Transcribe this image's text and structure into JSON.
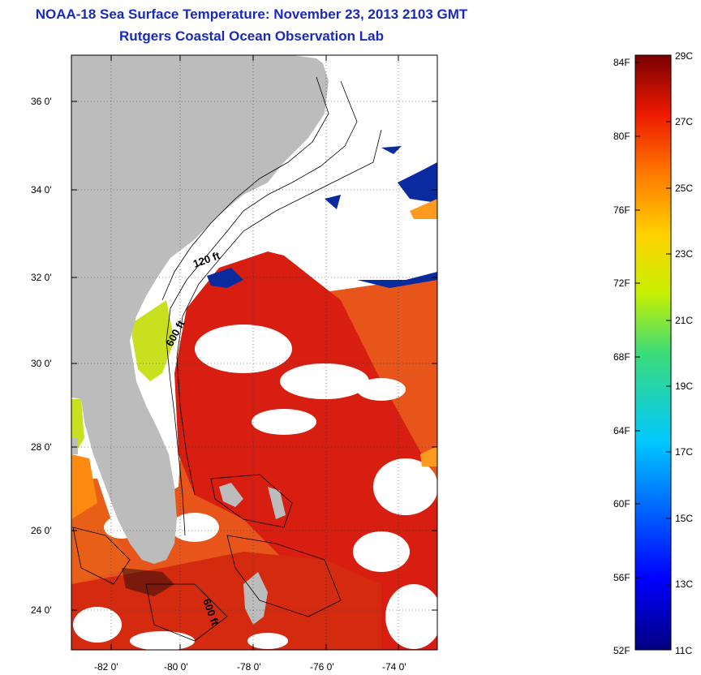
{
  "title": {
    "line1": "NOAA-18 Sea Surface Temperature:  November 23, 2013 2103 GMT",
    "line2": "Rutgers Coastal Ocean Observation Lab"
  },
  "map": {
    "lat_labels": [
      "36 0'",
      "34 0'",
      "32 0'",
      "30 0'",
      "28 0'",
      "26 0'",
      "24 0'"
    ],
    "lon_labels": [
      "-82 0'",
      "-80 0'",
      "-78 0'",
      "-76 0'",
      "-74 0'"
    ],
    "contour_labels": [
      "120 ft",
      "600 ft",
      "600 ft"
    ],
    "colors": {
      "land": "#bcbcbc",
      "gulf_stream": "#d81e10",
      "warm_water": "#e8551a",
      "cold_patch": "#0a2aa0",
      "cloud": "#ffffff"
    }
  },
  "colorbar": {
    "fahrenheit": [
      "84F",
      "80F",
      "76F",
      "72F",
      "68F",
      "64F",
      "60F",
      "56F",
      "52F"
    ],
    "celsius": [
      "29C",
      "27C",
      "25C",
      "23C",
      "21C",
      "19C",
      "17C",
      "15C",
      "13C",
      "11C"
    ]
  }
}
